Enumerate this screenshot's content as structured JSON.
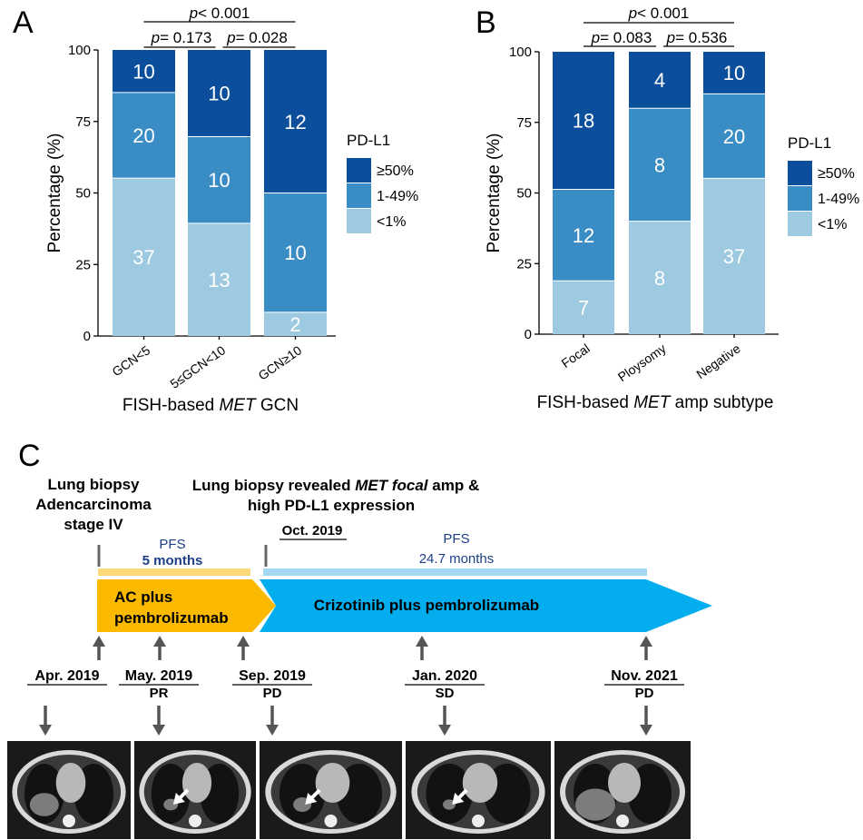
{
  "panel_labels": [
    "A",
    "B",
    "C"
  ],
  "colors": {
    "high": "#0b4f9c",
    "mid": "#3a8cc5",
    "low": "#9ecae1",
    "ac_arrow": "#fbb900",
    "criz_arrow": "#04aeee",
    "pfs_bar_1": "#fcd97b",
    "pfs_bar_2": "#a6d7f2",
    "pfs_text": "#1d3f86",
    "timeline_arrow": "#555555",
    "ct_bg": "#1a1a1a"
  },
  "chart_data": [
    {
      "type": "bar",
      "stacked": true,
      "panel": "A",
      "title": "",
      "xlabel_prefix": "FISH-based ",
      "xlabel_italic": "MET",
      "xlabel_suffix": " GCN",
      "ylabel": "Percentage (%)",
      "ylim": [
        0,
        100
      ],
      "yticks": [
        "0",
        "25",
        "50",
        "75",
        "100"
      ],
      "categories": [
        "GCN<5",
        "5≤GCN<10",
        "GCN≥10"
      ],
      "series": [
        {
          "name": "<1%",
          "counts": [
            37,
            13,
            2
          ],
          "percent": [
            55.2,
            39.4,
            8.3
          ]
        },
        {
          "name": "1-49%",
          "counts": [
            20,
            10,
            10
          ],
          "percent": [
            29.9,
            30.3,
            41.7
          ]
        },
        {
          "name": "≥50%",
          "counts": [
            10,
            10,
            12
          ],
          "percent": [
            14.9,
            30.3,
            50.0
          ]
        }
      ],
      "legend": {
        "title": "PD-L1",
        "entries": [
          "≥50%",
          "1-49%",
          "<1%"
        ],
        "position": "right"
      },
      "p_values": {
        "overall": "< 0.001",
        "pair1": "= 0.173",
        "pair2": "= 0.028",
        "p_label": "p"
      }
    },
    {
      "type": "bar",
      "stacked": true,
      "panel": "B",
      "title": "",
      "xlabel_prefix": "FISH-based ",
      "xlabel_italic": "MET",
      "xlabel_suffix": " amp subtype",
      "ylabel": "Percentage (%)",
      "ylim": [
        0,
        100
      ],
      "yticks": [
        "0",
        "25",
        "50",
        "75",
        "100"
      ],
      "categories": [
        "Focal",
        "Ploysomy",
        "Negative"
      ],
      "series": [
        {
          "name": "<1%",
          "counts": [
            7,
            8,
            37
          ],
          "percent": [
            18.9,
            40.0,
            55.2
          ]
        },
        {
          "name": "1-49%",
          "counts": [
            12,
            8,
            20
          ],
          "percent": [
            32.4,
            40.0,
            29.9
          ]
        },
        {
          "name": "≥50%",
          "counts": [
            18,
            4,
            10
          ],
          "percent": [
            48.7,
            20.0,
            14.9
          ]
        }
      ],
      "legend": {
        "title": "PD-L1",
        "entries": [
          "≥50%",
          "1-49%",
          "<1%"
        ],
        "position": "right"
      },
      "p_values": {
        "overall": "< 0.001",
        "pair1": "= 0.083",
        "pair2": "= 0.536",
        "p_label": "p"
      }
    }
  ],
  "timeline": {
    "biopsy1": [
      "Lung biopsy",
      "Adencarcinoma",
      "stage IV"
    ],
    "biopsy2_line1_prefix": "Lung biopsy revealed ",
    "biopsy2_line1_italic": "MET focal",
    "biopsy2_line1_suffix": " amp &",
    "biopsy2_line2": "high PD-L1 expression",
    "biopsy2_date": "Oct. 2019",
    "pfs1": {
      "label": "PFS",
      "value": "5 months"
    },
    "pfs2": {
      "label": "PFS",
      "value": "24.7 months"
    },
    "treatment1": [
      "AC plus",
      "pembrolizumab"
    ],
    "treatment2": "Crizotinib plus pembrolizumab",
    "events": [
      {
        "date": "Apr. 2019",
        "response": ""
      },
      {
        "date": "May. 2019",
        "response": "PR"
      },
      {
        "date": "Sep. 2019",
        "response": "PD"
      },
      {
        "date": "Jan. 2020",
        "response": "SD"
      },
      {
        "date": "Nov. 2021",
        "response": "PD"
      }
    ]
  }
}
